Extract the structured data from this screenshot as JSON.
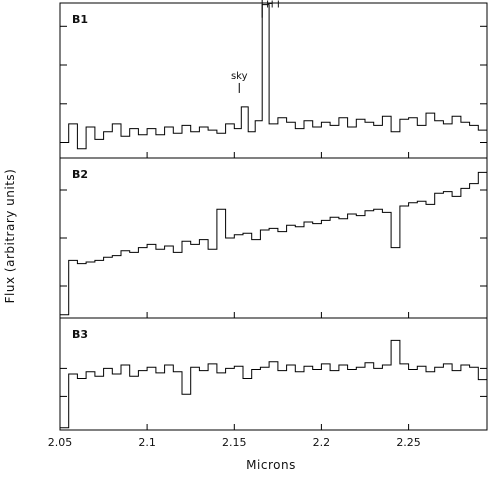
{
  "chart_data": {
    "type": "line",
    "title": "",
    "xlabel": "Microns",
    "ylabel": "Flux (arbitrary units)",
    "xlim": [
      2.05,
      2.295
    ],
    "x_ticks": [
      "2.05",
      "2.1",
      "2.15",
      "2.2",
      "2.25"
    ],
    "x_tick_values": [
      2.05,
      2.1,
      2.15,
      2.2,
      2.25
    ],
    "grid": false,
    "line_color": "#000000",
    "panels": [
      {
        "label": "B1",
        "ylim": [
          0,
          10
        ],
        "y_ticks": [
          1,
          3.5,
          6,
          8.5
        ],
        "annotations": [
          {
            "text": "sky",
            "x": 2.154,
            "y": 5.1
          },
          {
            "text": "H I",
            "x": 2.166,
            "y": 9.7
          }
        ],
        "x": [
          2.05,
          2.055,
          2.06,
          2.065,
          2.07,
          2.075,
          2.08,
          2.085,
          2.09,
          2.095,
          2.1,
          2.105,
          2.11,
          2.115,
          2.12,
          2.125,
          2.13,
          2.135,
          2.14,
          2.145,
          2.15,
          2.154,
          2.158,
          2.162,
          2.166,
          2.17,
          2.175,
          2.18,
          2.185,
          2.19,
          2.195,
          2.2,
          2.205,
          2.21,
          2.215,
          2.22,
          2.225,
          2.23,
          2.235,
          2.24,
          2.245,
          2.25,
          2.255,
          2.26,
          2.265,
          2.27,
          2.275,
          2.28,
          2.285,
          2.29,
          2.295
        ],
        "values": [
          1.0,
          2.2,
          0.6,
          2.0,
          1.2,
          1.7,
          2.2,
          1.4,
          1.9,
          1.5,
          1.9,
          1.5,
          2.0,
          1.6,
          2.1,
          1.7,
          2.0,
          1.8,
          1.6,
          2.2,
          1.9,
          3.3,
          1.7,
          2.4,
          9.9,
          2.2,
          2.6,
          2.3,
          1.9,
          2.4,
          2.0,
          2.3,
          2.1,
          2.6,
          2.0,
          2.5,
          2.3,
          2.1,
          2.7,
          1.7,
          2.5,
          2.6,
          2.1,
          2.9,
          2.4,
          2.2,
          2.7,
          2.3,
          2.1,
          1.8,
          1.9
        ]
      },
      {
        "label": "B2",
        "ylim": [
          0,
          10
        ],
        "y_ticks": [
          2,
          5,
          8
        ],
        "annotations": [],
        "x": [
          2.05,
          2.055,
          2.06,
          2.065,
          2.07,
          2.075,
          2.08,
          2.085,
          2.09,
          2.095,
          2.1,
          2.105,
          2.11,
          2.115,
          2.12,
          2.125,
          2.13,
          2.135,
          2.14,
          2.145,
          2.15,
          2.155,
          2.16,
          2.165,
          2.17,
          2.175,
          2.18,
          2.185,
          2.19,
          2.195,
          2.2,
          2.205,
          2.21,
          2.215,
          2.22,
          2.225,
          2.23,
          2.235,
          2.24,
          2.245,
          2.25,
          2.255,
          2.26,
          2.265,
          2.27,
          2.275,
          2.28,
          2.285,
          2.29,
          2.295
        ],
        "values": [
          0.2,
          3.6,
          3.4,
          3.5,
          3.6,
          3.8,
          3.9,
          4.2,
          4.1,
          4.4,
          4.6,
          4.3,
          4.5,
          4.1,
          4.8,
          4.6,
          4.9,
          4.3,
          6.8,
          5.0,
          5.2,
          5.3,
          4.9,
          5.5,
          5.6,
          5.4,
          5.8,
          5.7,
          6.0,
          5.9,
          6.1,
          6.3,
          6.2,
          6.5,
          6.4,
          6.7,
          6.8,
          6.6,
          4.4,
          7.0,
          7.2,
          7.3,
          7.1,
          7.8,
          7.9,
          7.6,
          8.1,
          8.4,
          9.1,
          8.3
        ]
      },
      {
        "label": "B3",
        "ylim": [
          0,
          10
        ],
        "y_ticks": [
          3,
          5.5
        ],
        "annotations": [],
        "x": [
          2.05,
          2.055,
          2.06,
          2.065,
          2.07,
          2.075,
          2.08,
          2.085,
          2.09,
          2.095,
          2.1,
          2.105,
          2.11,
          2.115,
          2.12,
          2.125,
          2.13,
          2.135,
          2.14,
          2.145,
          2.15,
          2.155,
          2.16,
          2.165,
          2.17,
          2.175,
          2.18,
          2.185,
          2.19,
          2.195,
          2.2,
          2.205,
          2.21,
          2.215,
          2.22,
          2.225,
          2.23,
          2.235,
          2.24,
          2.245,
          2.25,
          2.255,
          2.26,
          2.265,
          2.27,
          2.275,
          2.28,
          2.285,
          2.29,
          2.295
        ],
        "values": [
          0.2,
          5.0,
          4.6,
          5.2,
          4.8,
          5.5,
          5.0,
          5.8,
          4.8,
          5.3,
          5.6,
          5.1,
          5.8,
          5.2,
          3.2,
          5.6,
          5.3,
          5.9,
          5.1,
          5.5,
          5.7,
          4.6,
          5.4,
          5.6,
          6.1,
          5.3,
          5.8,
          5.2,
          5.7,
          5.4,
          5.9,
          5.3,
          5.8,
          5.4,
          5.6,
          6.0,
          5.5,
          5.8,
          8.0,
          5.9,
          5.4,
          5.7,
          5.2,
          5.6,
          5.9,
          5.3,
          5.8,
          5.6,
          4.5,
          4.2
        ]
      }
    ]
  }
}
